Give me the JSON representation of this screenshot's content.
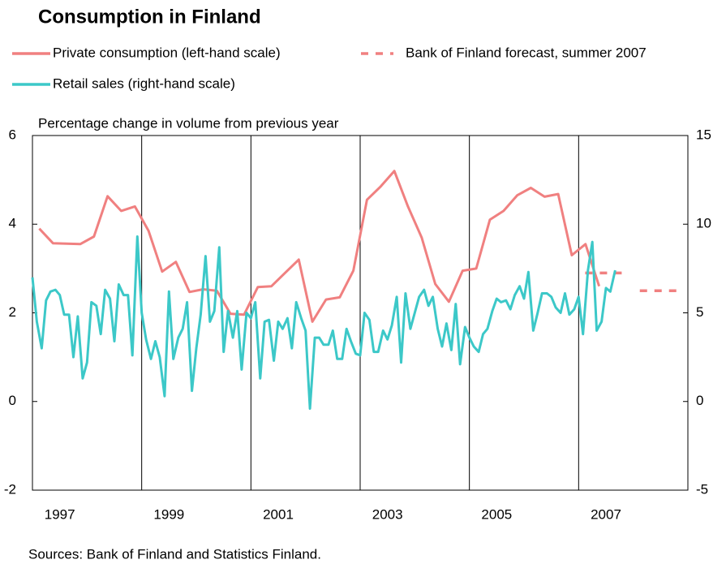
{
  "chart_data": {
    "type": "line",
    "title": "Consumption in Finland",
    "subtitle": "Percentage change in volume from previous year",
    "source": "Sources: Bank of Finland and Statistics Finland.",
    "xlim": [
      1997,
      2009
    ],
    "xticks": [
      1997,
      1999,
      2001,
      2003,
      2005,
      2007
    ],
    "ylim": [
      -2,
      6
    ],
    "yticks": [
      -2,
      0,
      2,
      4,
      6
    ],
    "y2lim": [
      -5,
      15
    ],
    "y2ticks": [
      -5,
      0,
      5,
      10,
      15
    ],
    "grid": true,
    "series": [
      {
        "name": "Private consumption (left-hand scale)",
        "color": "#f08080",
        "x": [
          1997.125,
          1997.375,
          1997.625,
          1997.875,
          1998.125,
          1998.375,
          1998.625,
          1998.875,
          1999.125,
          1999.375,
          1999.625,
          1999.875,
          2000.125,
          2000.375,
          2000.625,
          2000.875,
          2001.125,
          2001.375,
          2001.625,
          2001.875,
          2002.125,
          2002.375,
          2002.625,
          2002.875,
          2003.125,
          2003.375,
          2003.625,
          2003.875,
          2004.125,
          2004.375,
          2004.625,
          2004.875,
          2005.125,
          2005.375,
          2005.625,
          2005.875,
          2006.125,
          2006.375,
          2006.625,
          2006.875,
          2007.125,
          2007.375
        ],
        "values": [
          3.9,
          3.57,
          3.56,
          3.55,
          3.72,
          4.63,
          4.3,
          4.4,
          3.85,
          2.93,
          3.15,
          2.47,
          2.53,
          2.5,
          1.98,
          1.96,
          2.58,
          2.6,
          2.9,
          3.2,
          1.8,
          2.3,
          2.35,
          2.95,
          4.55,
          4.85,
          5.2,
          4.4,
          3.7,
          2.65,
          2.25,
          2.95,
          3.0,
          4.1,
          4.3,
          4.65,
          4.82,
          4.62,
          4.68,
          3.3,
          3.55,
          2.6
        ]
      },
      {
        "name": "Bank of Finland forecast, summer 2007",
        "color": "#f08080",
        "dashed": true,
        "x": [
          2007,
          2008
        ],
        "values": [
          2.9,
          2.5
        ]
      },
      {
        "name": "Retail sales (right-hand scale)",
        "color": "#3cc8c8",
        "axis": "y2",
        "x": [
          1997.0,
          1997.08,
          1997.17,
          1997.25,
          1997.33,
          1997.42,
          1997.5,
          1997.58,
          1997.67,
          1997.75,
          1997.83,
          1997.92,
          1998.0,
          1998.08,
          1998.17,
          1998.25,
          1998.33,
          1998.42,
          1998.5,
          1998.58,
          1998.67,
          1998.75,
          1998.83,
          1998.92,
          1999.0,
          1999.08,
          1999.17,
          1999.25,
          1999.33,
          1999.42,
          1999.5,
          1999.58,
          1999.67,
          1999.75,
          1999.83,
          1999.92,
          2000.0,
          2000.08,
          2000.17,
          2000.25,
          2000.33,
          2000.42,
          2000.5,
          2000.58,
          2000.67,
          2000.75,
          2000.83,
          2000.92,
          2001.0,
          2001.08,
          2001.17,
          2001.25,
          2001.33,
          2001.42,
          2001.5,
          2001.58,
          2001.67,
          2001.75,
          2001.83,
          2001.92,
          2002.0,
          2002.08,
          2002.17,
          2002.25,
          2002.33,
          2002.42,
          2002.5,
          2002.58,
          2002.67,
          2002.75,
          2002.83,
          2002.92,
          2003.0,
          2003.08,
          2003.17,
          2003.25,
          2003.33,
          2003.42,
          2003.5,
          2003.58,
          2003.67,
          2003.75,
          2003.83,
          2003.92,
          2004.0,
          2004.08,
          2004.17,
          2004.25,
          2004.33,
          2004.42,
          2004.5,
          2004.58,
          2004.67,
          2004.75,
          2004.83,
          2004.92,
          2005.0,
          2005.08,
          2005.17,
          2005.25,
          2005.33,
          2005.42,
          2005.5,
          2005.58,
          2005.67,
          2005.75,
          2005.83,
          2005.92,
          2006.0,
          2006.08,
          2006.17,
          2006.25,
          2006.33,
          2006.42,
          2006.5,
          2006.58,
          2006.67,
          2006.75,
          2006.83,
          2006.92,
          2007.0,
          2007.08,
          2007.17,
          2007.25,
          2007.33,
          2007.42,
          2007.5,
          2007.58,
          2007.67
        ],
        "values": [
          7.0,
          4.5,
          3.0,
          5.7,
          6.2,
          6.3,
          6.0,
          4.9,
          4.9,
          2.5,
          4.8,
          1.3,
          2.2,
          5.6,
          5.4,
          3.8,
          6.3,
          5.8,
          3.4,
          6.6,
          6.0,
          6.0,
          2.6,
          9.3,
          5.0,
          3.5,
          2.4,
          3.4,
          2.5,
          0.3,
          6.2,
          2.4,
          3.6,
          4.1,
          5.6,
          0.6,
          3.0,
          4.9,
          8.2,
          4.5,
          5.1,
          8.7,
          2.8,
          5.1,
          3.6,
          5.1,
          1.8,
          5.0,
          4.7,
          5.6,
          1.3,
          4.5,
          4.6,
          2.3,
          4.5,
          4.1,
          4.7,
          3.0,
          5.6,
          4.7,
          4.0,
          -0.4,
          3.6,
          3.6,
          3.2,
          3.2,
          4.0,
          2.4,
          2.4,
          4.1,
          3.4,
          2.7,
          2.6,
          5.0,
          4.6,
          2.8,
          2.8,
          4.0,
          3.5,
          4.3,
          5.9,
          2.2,
          6.1,
          4.1,
          5.0,
          5.9,
          6.3,
          5.4,
          5.9,
          4.1,
          3.1,
          4.4,
          2.9,
          5.5,
          2.1,
          4.2,
          3.6,
          3.1,
          2.8,
          3.8,
          4.1,
          5.1,
          5.8,
          5.6,
          5.7,
          5.2,
          6.0,
          6.5,
          5.8,
          7.3,
          4.0,
          5.0,
          6.1,
          6.1,
          5.9,
          5.3,
          5.0,
          6.1,
          4.9,
          5.2,
          5.9,
          3.8,
          7.4,
          9.0,
          4.0,
          4.5,
          6.4,
          6.2,
          7.4
        ]
      }
    ]
  }
}
